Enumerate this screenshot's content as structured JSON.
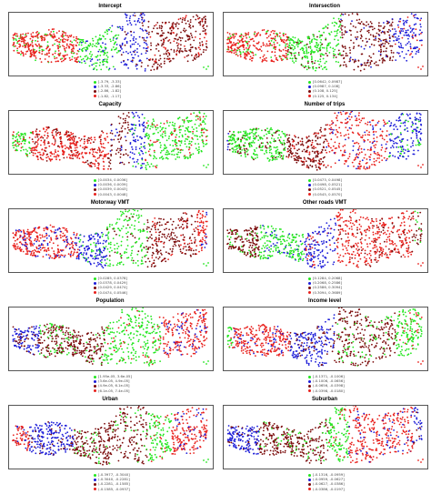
{
  "colors": {
    "red": "#e8201c",
    "green": "#22e61e",
    "blue": "#1c1cd8",
    "maroon": "#7a0a0a"
  },
  "panels": [
    {
      "title": "Intercept",
      "shares": {
        "red": 0.34,
        "green": 0.2,
        "blue": 0.14,
        "maroon": 0.32
      },
      "legend": [
        "[-3.79, -3.33]",
        "(-3.33, -2.86]",
        "(-2.86, -1.82]",
        "(-1.82, -1.17]"
      ]
    },
    {
      "title": "Intersection",
      "shares": {
        "red": 0.3,
        "green": 0.26,
        "blue": 0.18,
        "maroon": 0.26
      },
      "legend": [
        "[0.0642, 0.0987]",
        "(0.0987, 0.108]",
        "(0.108, 0.125]",
        "(0.125, 0.134]"
      ]
    },
    {
      "title": "Capacity",
      "shares": {
        "red": 0.38,
        "green": 0.44,
        "blue": 0.08,
        "maroon": 0.1
      },
      "legend": [
        "[0.0034, 0.0036]",
        "(0.0036, 0.0039]",
        "(0.0039, 0.0043]",
        "(0.0043, 0.0048]"
      ]
    },
    {
      "title": "Number of trips",
      "shares": {
        "red": 0.3,
        "green": 0.28,
        "blue": 0.22,
        "maroon": 0.2
      },
      "legend": [
        "[0.0473, 0.0498]",
        "(0.0498, 0.0521]",
        "(0.0521, 0.0545]",
        "(0.0545, 0.0570]"
      ]
    },
    {
      "title": "Motorway VMT",
      "shares": {
        "red": 0.42,
        "green": 0.2,
        "blue": 0.14,
        "maroon": 0.24
      },
      "legend": [
        "[0.0285, 0.0378]",
        "(0.0378, 0.0429]",
        "(0.0429, 0.0474]",
        "(0.0474, 0.0546]"
      ]
    },
    {
      "title": "Other roads VMT",
      "shares": {
        "red": 0.38,
        "green": 0.22,
        "blue": 0.16,
        "maroon": 0.24
      },
      "legend": [
        "[0.1284, 0.2068]",
        "(0.2068, 0.2586]",
        "(0.2586, 0.3094]",
        "(0.3094, 0.3689]"
      ]
    },
    {
      "title": "Population",
      "shares": {
        "red": 0.26,
        "green": 0.28,
        "blue": 0.14,
        "maroon": 0.32
      },
      "legend": [
        "[1.95e-05, 3.6e-05]",
        "(3.6e-05, 4.9e-05]",
        "(4.9e-05, 6.1e-05]",
        "(6.1e-05, 7.4e-05]"
      ]
    },
    {
      "title": "Income level",
      "shares": {
        "red": 0.28,
        "green": 0.2,
        "blue": 0.22,
        "maroon": 0.3
      },
      "legend": [
        "[-0.1371, -0.1006]",
        "(-0.1006, -0.0656]",
        "(-0.0656, -0.0398]",
        "(-0.0398, -0.0180]"
      ]
    },
    {
      "title": "Urban",
      "shares": {
        "red": 0.3,
        "green": 0.12,
        "blue": 0.22,
        "maroon": 0.36
      },
      "legend": [
        "[-0.3977, -0.3040]",
        "(-0.3040, -0.2281]",
        "(-0.2281, -0.1585]",
        "(-0.1585, -0.0937]"
      ]
    },
    {
      "title": "Suburban",
      "shares": {
        "red": 0.32,
        "green": 0.1,
        "blue": 0.24,
        "maroon": 0.34
      },
      "legend": [
        "[-0.1316, -0.0959]",
        "(-0.0959, -0.0627]",
        "(-0.0627, -0.0386]",
        "(-0.0386, -0.0197]"
      ]
    }
  ]
}
